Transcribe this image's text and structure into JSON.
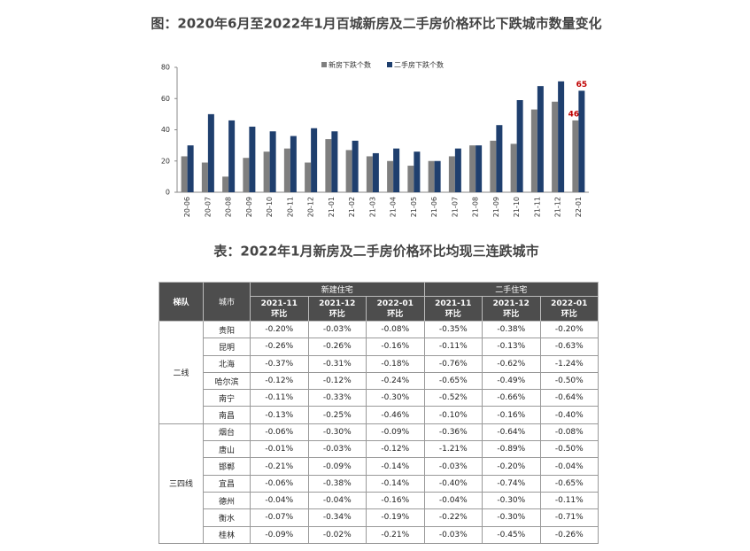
{
  "chart_data": {
    "type": "bar",
    "title": "图：2020年6月至2022年1月百城新房及二手房价格环比下跌城市数量变化",
    "categories": [
      "20-06",
      "20-07",
      "20-08",
      "20-09",
      "20-10",
      "20-11",
      "20-12",
      "21-01",
      "21-02",
      "21-03",
      "21-04",
      "21-05",
      "21-06",
      "21-07",
      "21-08",
      "21-09",
      "21-10",
      "21-11",
      "21-12",
      "22-01"
    ],
    "series": [
      {
        "name": "新房下跌个数",
        "color": "#7f7f7f",
        "values": [
          23,
          19,
          10,
          22,
          26,
          28,
          19,
          34,
          27,
          23,
          20,
          17,
          20,
          23,
          30,
          33,
          31,
          53,
          58,
          46
        ]
      },
      {
        "name": "二手房下跌个数",
        "color": "#1f3f6e",
        "values": [
          30,
          50,
          46,
          42,
          39,
          36,
          41,
          39,
          33,
          25,
          28,
          26,
          20,
          28,
          30,
          43,
          59,
          68,
          71,
          65
        ]
      }
    ],
    "ylim": [
      0,
      80
    ],
    "yticks": [
      0,
      20,
      40,
      60,
      80
    ],
    "grid": false,
    "label_last": true,
    "label_color": "#c00000"
  },
  "table": {
    "title": "表：2022年1月新房及二手房价格环比均现三连跌城市",
    "header": {
      "tier": "梯队",
      "city": "城市",
      "groups": [
        "新建住宅",
        "二手住宅"
      ],
      "periods": [
        "2021-11",
        "2021-12",
        "2022-01",
        "2021-11",
        "2021-12",
        "2022-01"
      ],
      "sub": "环比"
    },
    "tiers": [
      {
        "name": "二线",
        "rows": [
          {
            "city": "贵阳",
            "values": [
              "-0.20%",
              "-0.03%",
              "-0.08%",
              "-0.35%",
              "-0.38%",
              "-0.20%"
            ]
          },
          {
            "city": "昆明",
            "values": [
              "-0.26%",
              "-0.26%",
              "-0.16%",
              "-0.11%",
              "-0.13%",
              "-0.63%"
            ]
          },
          {
            "city": "北海",
            "values": [
              "-0.37%",
              "-0.31%",
              "-0.18%",
              "-0.76%",
              "-0.62%",
              "-1.24%"
            ]
          },
          {
            "city": "哈尔滨",
            "values": [
              "-0.12%",
              "-0.12%",
              "-0.24%",
              "-0.65%",
              "-0.49%",
              "-0.50%"
            ]
          },
          {
            "city": "南宁",
            "values": [
              "-0.11%",
              "-0.33%",
              "-0.30%",
              "-0.52%",
              "-0.66%",
              "-0.64%"
            ]
          },
          {
            "city": "南昌",
            "values": [
              "-0.13%",
              "-0.25%",
              "-0.46%",
              "-0.10%",
              "-0.16%",
              "-0.40%"
            ]
          }
        ]
      },
      {
        "name": "三四线",
        "rows": [
          {
            "city": "烟台",
            "values": [
              "-0.06%",
              "-0.30%",
              "-0.09%",
              "-0.36%",
              "-0.64%",
              "-0.08%"
            ]
          },
          {
            "city": "唐山",
            "values": [
              "-0.01%",
              "-0.03%",
              "-0.12%",
              "-1.21%",
              "-0.89%",
              "-0.50%"
            ]
          },
          {
            "city": "邯郸",
            "values": [
              "-0.21%",
              "-0.09%",
              "-0.14%",
              "-0.03%",
              "-0.20%",
              "-0.04%"
            ]
          },
          {
            "city": "宜昌",
            "values": [
              "-0.06%",
              "-0.38%",
              "-0.14%",
              "-0.40%",
              "-0.74%",
              "-0.65%"
            ]
          },
          {
            "city": "德州",
            "values": [
              "-0.04%",
              "-0.04%",
              "-0.16%",
              "-0.04%",
              "-0.30%",
              "-0.11%"
            ]
          },
          {
            "city": "衡水",
            "values": [
              "-0.07%",
              "-0.34%",
              "-0.19%",
              "-0.22%",
              "-0.30%",
              "-0.71%"
            ]
          },
          {
            "city": "桂林",
            "values": [
              "-0.09%",
              "-0.02%",
              "-0.21%",
              "-0.03%",
              "-0.45%",
              "-0.26%"
            ]
          }
        ]
      }
    ]
  }
}
